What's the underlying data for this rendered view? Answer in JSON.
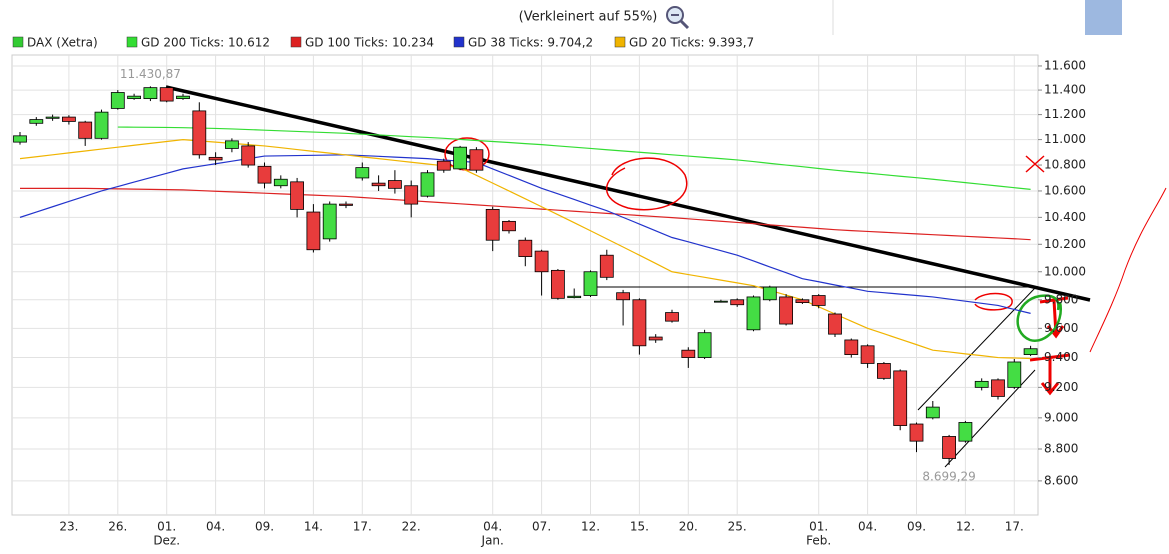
{
  "chart_data": {
    "type": "candlestick",
    "header_note": "(Verkleinert auf 55%)",
    "name": "DAX (Xetra)",
    "color": "#33cc33",
    "up_color": "#44dd44",
    "down_color": "#e83c3c",
    "log_scale": true,
    "grid": true,
    "categories": [
      null,
      null,
      null,
      "23.",
      null,
      null,
      "26.",
      null,
      null,
      "01.",
      null,
      null,
      "04.",
      null,
      null,
      "09.",
      null,
      null,
      "14.",
      null,
      null,
      "17.",
      null,
      null,
      "22.",
      null,
      null,
      null,
      null,
      "04.",
      null,
      null,
      "07.",
      null,
      null,
      "12.",
      null,
      null,
      "15.",
      null,
      null,
      "20.",
      null,
      null,
      "25.",
      null,
      null,
      null,
      null,
      "01.",
      null,
      null,
      "04.",
      null,
      null,
      "09.",
      null,
      null,
      "12.",
      null,
      null,
      "17.",
      null
    ],
    "months": [
      null,
      null,
      null,
      null,
      null,
      null,
      null,
      null,
      null,
      "Dez.",
      null,
      null,
      null,
      null,
      null,
      null,
      null,
      null,
      null,
      null,
      null,
      null,
      null,
      null,
      null,
      null,
      null,
      null,
      null,
      "Jan.",
      null,
      null,
      null,
      null,
      null,
      null,
      null,
      null,
      null,
      null,
      null,
      null,
      null,
      null,
      null,
      null,
      null,
      null,
      null,
      "Feb.",
      null,
      null,
      null,
      null,
      null,
      null,
      null,
      null,
      null,
      null,
      null,
      null,
      null
    ],
    "open": [
      10980,
      11130,
      11170,
      11180,
      11140,
      11010,
      11250,
      11330,
      11330,
      11420,
      11330,
      11230,
      10860,
      10930,
      10950,
      10790,
      10640,
      10670,
      10440,
      10240,
      10500,
      10700,
      10660,
      10680,
      10640,
      10560,
      10830,
      10770,
      10920,
      10460,
      10370,
      10230,
      10150,
      10010,
      9815,
      9830,
      10120,
      9850,
      9800,
      9540,
      9710,
      9450,
      9400,
      9785,
      9800,
      9590,
      9800,
      9820,
      9800,
      9830,
      9700,
      9520,
      9480,
      9360,
      9310,
      8960,
      9000,
      8880,
      8850,
      9200,
      9250,
      9200,
      9420
    ],
    "high": [
      11060,
      11180,
      11200,
      11195,
      11150,
      11240,
      11400,
      11370,
      11430.87,
      11425,
      11370,
      11300,
      10900,
      11010,
      10980,
      10820,
      10720,
      10700,
      10500,
      10520,
      10520,
      10820,
      10720,
      10760,
      10680,
      10760,
      10850,
      10950,
      10940,
      10480,
      10380,
      10250,
      10160,
      10020,
      9880,
      10010,
      10160,
      9870,
      9810,
      9560,
      9730,
      9470,
      9590,
      9800,
      9810,
      9830,
      9900,
      9840,
      9810,
      9840,
      9710,
      9530,
      9490,
      9370,
      9320,
      8970,
      9110,
      8890,
      8980,
      9260,
      9260,
      9390,
      9480
    ],
    "low": [
      10960,
      11110,
      11150,
      11120,
      10950,
      11000,
      11240,
      11320,
      11310,
      11300,
      11320,
      10850,
      10800,
      10900,
      10780,
      10620,
      10620,
      10400,
      10140,
      10220,
      10470,
      10680,
      10600,
      10580,
      10400,
      10550,
      10740,
      10760,
      10740,
      10150,
      10280,
      10040,
      9830,
      9800,
      9810,
      9820,
      9940,
      9620,
      9420,
      9500,
      9640,
      9330,
      9390,
      9780,
      9750,
      9580,
      9790,
      9620,
      9770,
      9740,
      9540,
      9400,
      9330,
      9250,
      8920,
      8780,
      8990,
      8699.29,
      8840,
      9180,
      9120,
      9190,
      9410
    ],
    "close": [
      11030,
      11160,
      11180,
      11145,
      11010,
      11220,
      11380,
      11350,
      11420,
      11310,
      11350,
      10880,
      10840,
      10990,
      10800,
      10660,
      10690,
      10460,
      10160,
      10500,
      10490,
      10780,
      10640,
      10620,
      10500,
      10740,
      10760,
      10940,
      10760,
      10230,
      10300,
      10110,
      10000,
      9810,
      9825,
      10000,
      9960,
      9800,
      9480,
      9520,
      9650,
      9400,
      9570,
      9790,
      9765,
      9820,
      9890,
      9630,
      9780,
      9760,
      9560,
      9420,
      9360,
      9260,
      8950,
      8850,
      9070,
      8740,
      8970,
      9240,
      9140,
      9370,
      9460
    ],
    "annotations": [
      {
        "value": 11430.87,
        "label": "11.430,87"
      },
      {
        "value": 8699.29,
        "label": "8.699,29"
      }
    ],
    "series": [
      {
        "name": "GD 200 Ticks: 10.612",
        "color": "#33dd33",
        "values": [
          null,
          null,
          null,
          null,
          null,
          null,
          11100,
          11099,
          11098,
          11097,
          11095,
          11092,
          11089,
          11085,
          11080,
          11075,
          11070,
          11065,
          11060,
          11055,
          11050,
          11043,
          11037,
          11030,
          11023,
          11017,
          11010,
          11002,
          10993,
          10985,
          10977,
          10968,
          10960,
          10950,
          10940,
          10930,
          10920,
          10910,
          10900,
          10890,
          10880,
          10870,
          10860,
          10850,
          10840,
          10827,
          10813,
          10800,
          10787,
          10773,
          10760,
          10748,
          10737,
          10725,
          10713,
          10702,
          10690,
          10677,
          10664,
          10651,
          10638,
          10625,
          10612
        ]
      },
      {
        "name": "GD 100 Ticks: 10.234",
        "color": "#dd2222",
        "values": [
          10620,
          10620,
          10620,
          10620,
          10620,
          10618,
          10616,
          10614,
          10612,
          10610,
          10608,
          10603,
          10598,
          10593,
          10588,
          10583,
          10578,
          10573,
          10568,
          10563,
          10558,
          10550,
          10542,
          10534,
          10526,
          10518,
          10510,
          10502,
          10494,
          10486,
          10478,
          10470,
          10462,
          10454,
          10446,
          10438,
          10430,
          10422,
          10414,
          10406,
          10398,
          10389,
          10380,
          10371,
          10362,
          10353,
          10344,
          10335,
          10326,
          10317,
          10308,
          10301,
          10295,
          10289,
          10283,
          10277,
          10271,
          10265,
          10259,
          10253,
          10247,
          10241,
          10234
        ]
      },
      {
        "name": "GD 38 Ticks: 9.704,2",
        "color": "#2233cc",
        "values": [
          10400,
          10440,
          10480,
          10520,
          10560,
          10600,
          10634,
          10668,
          10702,
          10736,
          10770,
          10790,
          10810,
          10830,
          10850,
          10870,
          10872,
          10874,
          10876,
          10878,
          10880,
          10874,
          10868,
          10862,
          10856,
          10850,
          10840,
          10830,
          10820,
          10770,
          10720,
          10670,
          10620,
          10578,
          10535,
          10492,
          10450,
          10400,
          10350,
          10300,
          10250,
          10218,
          10185,
          10153,
          10120,
          10078,
          10035,
          9993,
          9950,
          9928,
          9905,
          9883,
          9860,
          9850,
          9840,
          9830,
          9820,
          9805,
          9790,
          9775,
          9760,
          9732,
          9704.2
        ]
      },
      {
        "name": "GD 20 Ticks: 9.393,7",
        "color": "#f0b400",
        "values": [
          10850,
          10865,
          10880,
          10895,
          10910,
          10925,
          10940,
          10955,
          10970,
          10985,
          11000,
          10990,
          10980,
          10970,
          10960,
          10950,
          10936,
          10921,
          10907,
          10893,
          10879,
          10864,
          10850,
          10836,
          10822,
          10808,
          10794,
          10780,
          10720,
          10660,
          10600,
          10540,
          10480,
          10420,
          10360,
          10300,
          10240,
          10180,
          10120,
          10060,
          10000,
          9980,
          9960,
          9940,
          9920,
          9900,
          9867,
          9833,
          9800,
          9750,
          9700,
          9650,
          9600,
          9563,
          9525,
          9488,
          9450,
          9438,
          9425,
          9413,
          9400,
          9397,
          9393.7
        ]
      }
    ],
    "ylim": [
      8391,
      11692
    ],
    "yticks": [
      {
        "value": 8600,
        "label": "8.600"
      },
      {
        "value": 8800,
        "label": "8.800"
      },
      {
        "value": 9000,
        "label": "9.000"
      },
      {
        "value": 9200,
        "label": "9.200"
      },
      {
        "value": 9400,
        "label": "9.400"
      },
      {
        "value": 9600,
        "label": "9.600"
      },
      {
        "value": 9800,
        "label": "9.800"
      },
      {
        "value": 10000,
        "label": "10.000"
      },
      {
        "value": 10200,
        "label": "10.200"
      },
      {
        "value": 10400,
        "label": "10.400"
      },
      {
        "value": 10600,
        "label": "10.600"
      },
      {
        "value": 10800,
        "label": "10.800"
      },
      {
        "value": 11000,
        "label": "11.000"
      },
      {
        "value": 11200,
        "label": "11.200"
      },
      {
        "value": 11400,
        "label": "11.400"
      },
      {
        "value": 11600,
        "label": "11.600"
      }
    ]
  }
}
